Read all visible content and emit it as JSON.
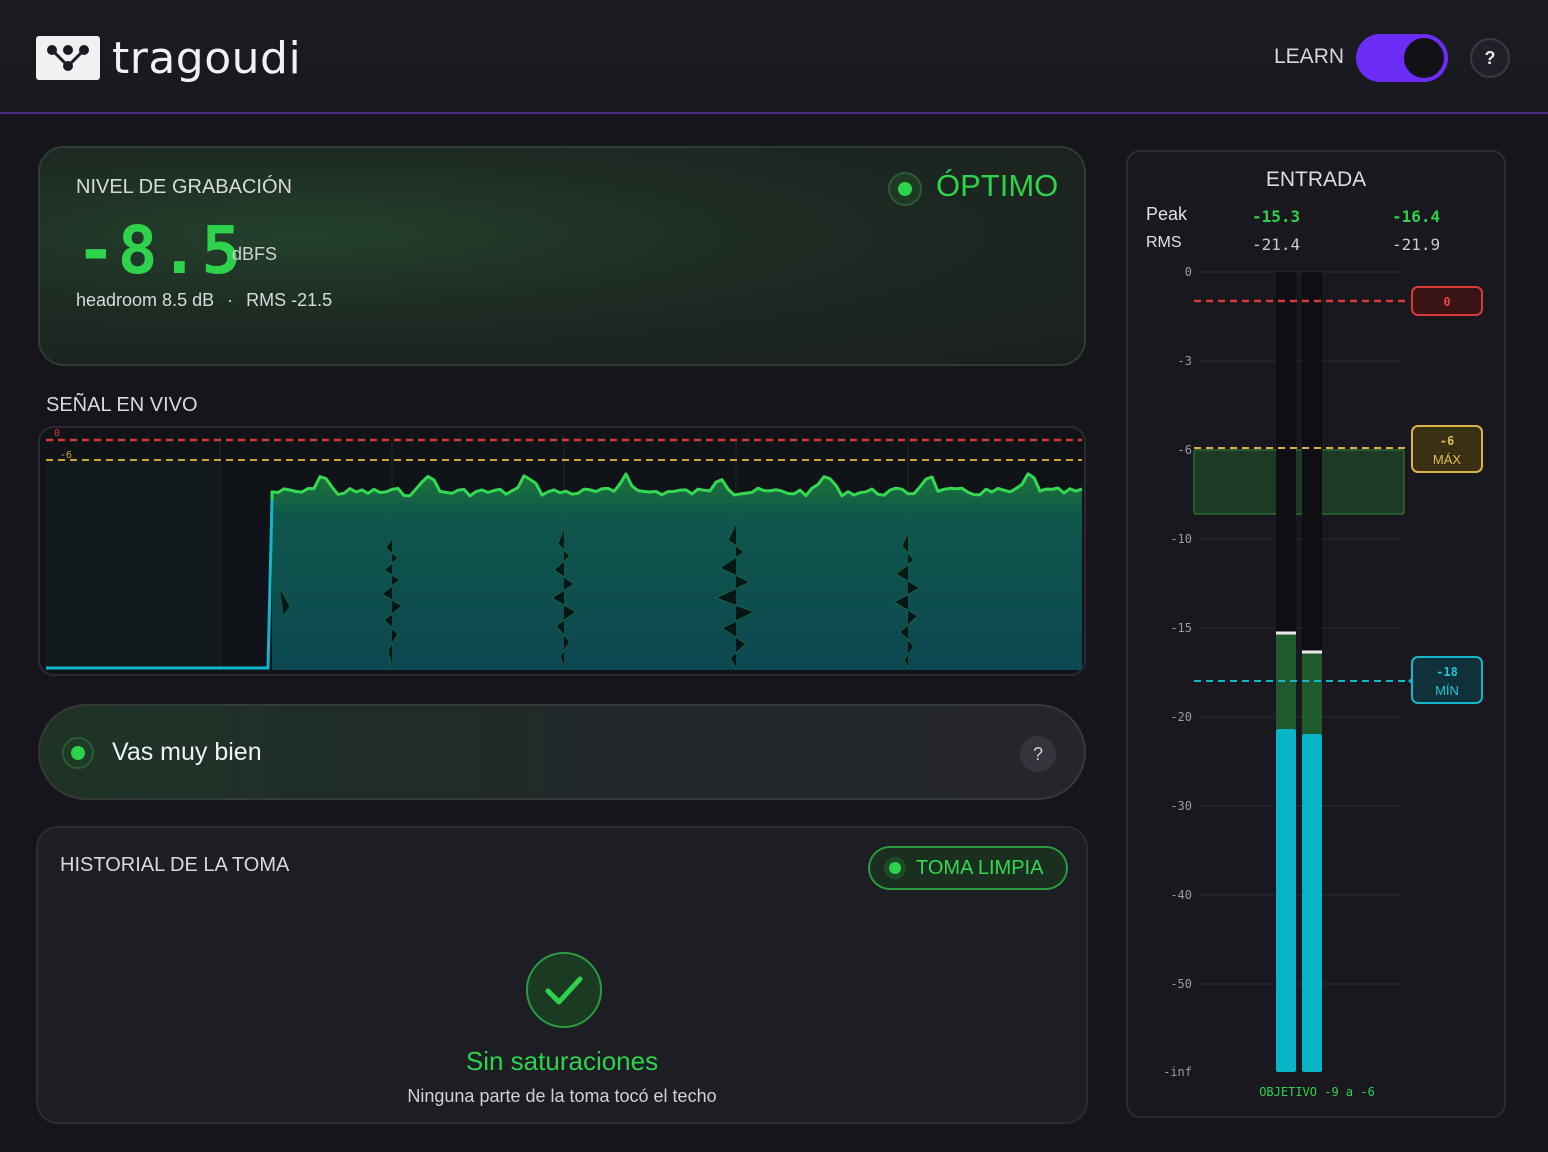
{
  "header": {
    "app_name": "tragoudi",
    "learn_label": "LEARN",
    "help_label": "?"
  },
  "level": {
    "title": "NIVEL DE GRABACIÓN",
    "status": "ÓPTIMO",
    "value": "-8.5",
    "unit": "dBFS",
    "headroom": "headroom 8.5 dB",
    "separator": "·",
    "rms": "RMS -21.5"
  },
  "live": {
    "title": "SEÑAL EN VIVO",
    "ref_labels": [
      "0",
      "-6"
    ]
  },
  "feedback": {
    "message": "Vas muy bien",
    "help_label": "?"
  },
  "history": {
    "title": "HISTORIAL DE LA TOMA",
    "badge": "TOMA LIMPIA",
    "result": "Sin saturaciones",
    "detail": "Ninguna parte de la toma tocó el techo"
  },
  "meter": {
    "title": "ENTRADA",
    "peak_label": "Peak",
    "rms_label": "RMS",
    "peak_left": "-15.3",
    "peak_right": "-16.4",
    "rms_left": "-21.4",
    "rms_right": "-21.9",
    "scale": [
      "0",
      "-3",
      "-6",
      "-10",
      "-15",
      "-20",
      "-30",
      "-40",
      "-50",
      "-inf"
    ],
    "marker_clip": "0",
    "marker_max_value": "-6",
    "marker_max_label": "MÁX",
    "marker_min_value": "-18",
    "marker_min_label": "MÍN",
    "target": "OBJETIVO -9 a -6"
  },
  "colors": {
    "accent_green": "#2fd24c",
    "toggle_purple": "#6b2cf5",
    "clip_red": "#d83a3a",
    "max_yellow": "#d9b24a",
    "min_cyan": "#19b6c9",
    "meter_cyan": "#07b4c8"
  }
}
